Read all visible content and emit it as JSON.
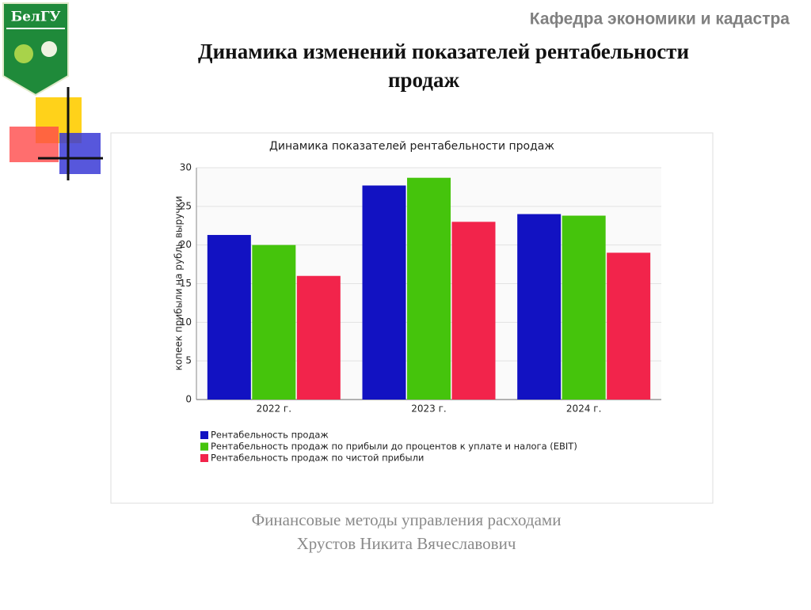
{
  "header": "Кафедра экономики и кадастра",
  "logo": "БелГУ",
  "title": [
    "Динамика изменений показателей рентабельности",
    "продаж"
  ],
  "footer": [
    "Финансовые методы управления расходами",
    "Хрустов Никита Вячеславович"
  ],
  "chart_data": {
    "type": "bar",
    "title": "Динамика показателей рентабельности продаж",
    "y_label": "копеек прибыли на рубль выручки",
    "categories": [
      "2022 г.",
      "2023 г.",
      "2024 г."
    ],
    "series": [
      {
        "name": "Рентабельность продаж",
        "color": "#1212c2",
        "values": [
          21.3,
          27.7,
          24
        ]
      },
      {
        "name": "Рентабельность продаж по прибыли до процентов к уплате и налога (EBIT)",
        "color": "#45c40c",
        "values": [
          20,
          28.7,
          23.8
        ]
      },
      {
        "name": "Рентабельность продаж по чистой прибыли",
        "color": "#f2244b",
        "values": [
          16,
          23,
          19
        ]
      }
    ],
    "ylim": [
      0,
      30
    ],
    "yticks": [
      0,
      5,
      10,
      15,
      20,
      25,
      30
    ],
    "grid": true,
    "legend": "bottom"
  }
}
